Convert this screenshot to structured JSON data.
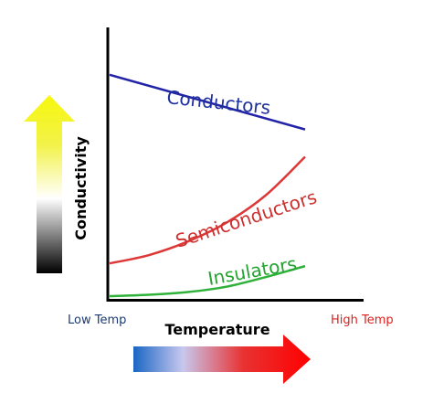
{
  "chart_data": {
    "type": "line",
    "title": "",
    "xlabel": "Temperature",
    "ylabel": "Conductivity",
    "x_tick_labels": {
      "low": "Low Temp",
      "high": "High Temp"
    },
    "xlim": [
      0,
      1
    ],
    "ylim": [
      0,
      1
    ],
    "grid": false,
    "series": [
      {
        "name": "Conductors",
        "color": "#2323a8",
        "label_color": "#1e2f9e",
        "x": [
          0,
          1
        ],
        "y": [
          0.82,
          0.62
        ]
      },
      {
        "name": "Semiconductors",
        "color": "#de3737",
        "label_color": "#cd3030",
        "x": [
          0,
          0.2,
          0.4,
          0.6,
          0.8,
          1
        ],
        "y": [
          0.13,
          0.16,
          0.21,
          0.28,
          0.38,
          0.52
        ]
      },
      {
        "name": "Insulators",
        "color": "#2fb13a",
        "label_color": "#25a332",
        "x": [
          0,
          0.2,
          0.4,
          0.6,
          0.8,
          1
        ],
        "y": [
          0.01,
          0.015,
          0.025,
          0.045,
          0.08,
          0.12
        ]
      }
    ],
    "axis_color": "#000000",
    "low_color": "#1a3a78",
    "high_color": "#e0201e",
    "y_arrow_gradient": [
      "#000000",
      "#ffffff",
      "#f2f24a",
      "#f7f70d"
    ],
    "x_arrow_gradient": [
      "#1a66c4",
      "#c8c8ee",
      "#e83232",
      "#ff0000"
    ]
  }
}
